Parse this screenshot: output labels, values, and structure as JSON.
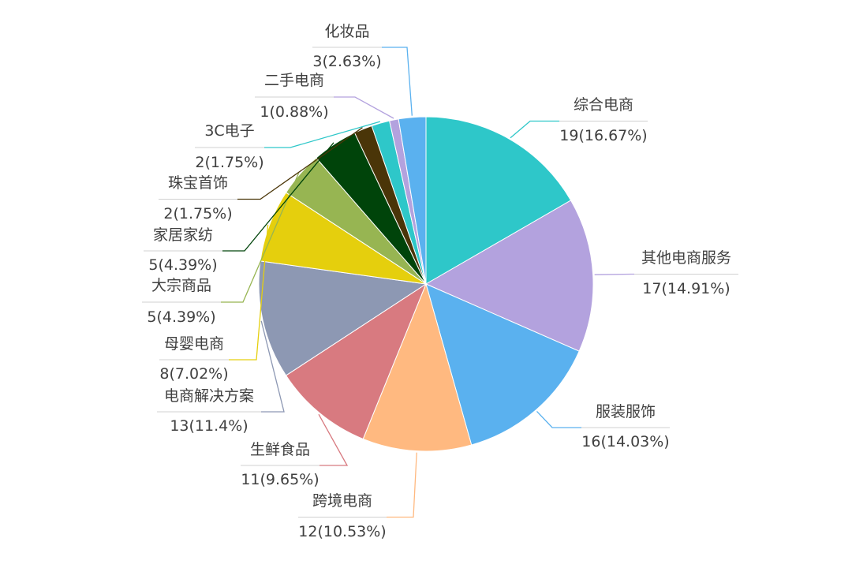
{
  "chart_data": {
    "type": "pie",
    "start_angle_deg": 0,
    "direction": "clockwise",
    "slices": [
      {
        "name": "综合电商",
        "value": 19,
        "percent": "16.67%",
        "label": "19(16.67%)",
        "color": "#2ec7c9"
      },
      {
        "name": "其他电商服务",
        "value": 17,
        "percent": "14.91%",
        "label": "17(14.91%)",
        "color": "#b3a2de"
      },
      {
        "name": "服装服饰",
        "value": 16,
        "percent": "14.03%",
        "label": "16(14.03%)",
        "color": "#5ab1ef"
      },
      {
        "name": "跨境电商",
        "value": 12,
        "percent": "10.53%",
        "label": "12(10.53%)",
        "color": "#ffb980"
      },
      {
        "name": "生鲜食品",
        "value": 11,
        "percent": "9.65%",
        "label": "11(9.65%)",
        "color": "#d87a80"
      },
      {
        "name": "电商解决方案",
        "value": 13,
        "percent": "11.4%",
        "label": "13(11.4%)",
        "color": "#8d98b3"
      },
      {
        "name": "母婴电商",
        "value": 8,
        "percent": "7.02%",
        "label": "8(7.02%)",
        "color": "#e5cf0d"
      },
      {
        "name": "大宗商品",
        "value": 5,
        "percent": "4.39%",
        "label": "5(4.39%)",
        "color": "#97b552"
      },
      {
        "name": "家居家纺",
        "value": 5,
        "percent": "4.39%",
        "label": "5(4.39%)",
        "color": "#00440a"
      },
      {
        "name": "珠宝首饰",
        "value": 2,
        "percent": "1.75%",
        "label": "2(1.75%)",
        "color": "#4a3508"
      },
      {
        "name": "3C电子",
        "value": 2,
        "percent": "1.75%",
        "label": "2(1.75%)",
        "color": "#2ec7c9"
      },
      {
        "name": "二手电商",
        "value": 1,
        "percent": "0.88%",
        "label": "1(0.88%)",
        "color": "#b3a2de"
      },
      {
        "name": "化妆品",
        "value": 3,
        "percent": "2.63%",
        "label": "3(2.63%)",
        "color": "#5ab1ef"
      }
    ]
  }
}
